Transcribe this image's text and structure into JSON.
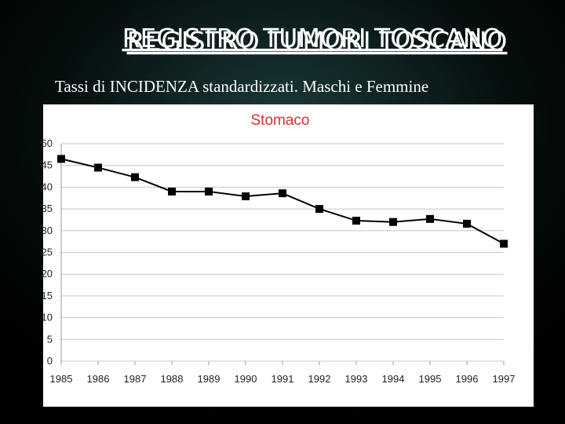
{
  "header": {
    "title": "REGISTRO TUMORI TOSCANO",
    "subtitle": "Tassi di INCIDENZA standardizzati. Maschi e Femmine"
  },
  "chart_data": {
    "type": "line",
    "title": "Stomaco",
    "categories": [
      "1985",
      "1986",
      "1987",
      "1988",
      "1989",
      "1990",
      "1991",
      "1992",
      "1993",
      "1994",
      "1995",
      "1996",
      "1997"
    ],
    "series": [
      {
        "name": "Stomaco",
        "color": "#000000",
        "values": [
          46.5,
          44.5,
          42.3,
          39,
          39,
          37.9,
          38.6,
          35,
          32.3,
          32,
          32.7,
          31.6,
          27
        ]
      }
    ],
    "ylim": [
      0,
      50
    ],
    "yticks": [
      0,
      5,
      10,
      15,
      20,
      25,
      30,
      35,
      40,
      45,
      50
    ],
    "grid": true,
    "title_color": "#e0302a"
  }
}
